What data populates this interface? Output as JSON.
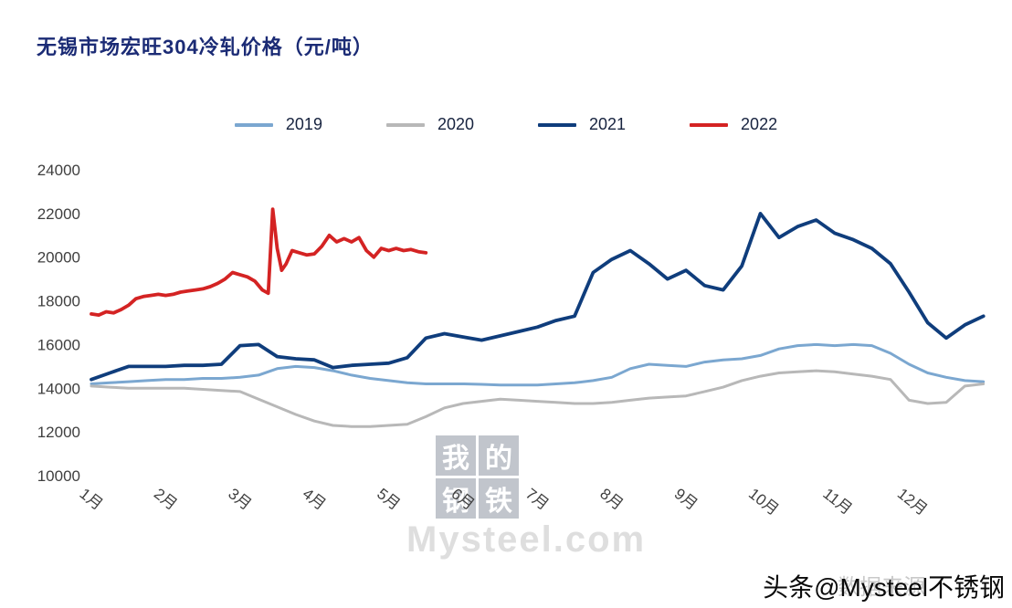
{
  "title": "无锡市场宏旺304冷轧价格（元/吨）",
  "watermark": {
    "chars": [
      "我",
      "的",
      "钢",
      "铁"
    ],
    "site": "Mysteel.com"
  },
  "footer": {
    "credit": "头条@Mysteel不锈钢",
    "faint": "数据来源"
  },
  "chart_data": {
    "type": "line",
    "title": "无锡市场宏旺304冷轧价格（元/吨）",
    "xlabel": "",
    "ylabel": "",
    "legend_position": "top-center",
    "grid": false,
    "x_axis": {
      "range": [
        1,
        13.2
      ],
      "tick_values": [
        1,
        2,
        3,
        4,
        5,
        6,
        7,
        8,
        9,
        10,
        11,
        12
      ],
      "tick_labels": [
        "1月",
        "2月",
        "3月",
        "4月",
        "5月",
        "6月",
        "7月",
        "8月",
        "9月",
        "10月",
        "11月",
        "12月"
      ]
    },
    "y_axis": {
      "range": [
        10000,
        24000
      ],
      "tick_values": [
        10000,
        12000,
        14000,
        16000,
        18000,
        20000,
        22000,
        24000
      ]
    },
    "series": [
      {
        "name": "2019",
        "color": "#7ba7d0",
        "stroke_width": 3,
        "x": [
          1,
          1.25,
          1.5,
          1.75,
          2,
          2.25,
          2.5,
          2.75,
          3,
          3.25,
          3.5,
          3.75,
          4,
          4.25,
          4.5,
          4.75,
          5,
          5.25,
          5.5,
          5.75,
          6,
          6.25,
          6.5,
          6.75,
          7,
          7.25,
          7.5,
          7.75,
          8,
          8.25,
          8.5,
          8.75,
          9,
          9.25,
          9.5,
          9.75,
          10,
          10.25,
          10.5,
          10.75,
          11,
          11.25,
          11.5,
          11.75,
          12,
          12.25,
          12.5,
          12.75,
          13
        ],
        "y": [
          14200,
          14250,
          14300,
          14350,
          14400,
          14400,
          14450,
          14450,
          14500,
          14600,
          14900,
          15000,
          14950,
          14800,
          14600,
          14450,
          14350,
          14250,
          14200,
          14200,
          14200,
          14180,
          14150,
          14150,
          14150,
          14200,
          14250,
          14350,
          14500,
          14900,
          15100,
          15050,
          15000,
          15200,
          15300,
          15350,
          15500,
          15800,
          15950,
          16000,
          15950,
          16000,
          15950,
          15600,
          15100,
          14700,
          14500,
          14350,
          14300
        ]
      },
      {
        "name": "2020",
        "color": "#b8b8b8",
        "stroke_width": 3,
        "x": [
          1,
          1.25,
          1.5,
          1.75,
          2,
          2.25,
          2.5,
          2.75,
          3,
          3.25,
          3.5,
          3.75,
          4,
          4.25,
          4.5,
          4.75,
          5,
          5.25,
          5.5,
          5.75,
          6,
          6.25,
          6.5,
          6.75,
          7,
          7.25,
          7.5,
          7.75,
          8,
          8.25,
          8.5,
          8.75,
          9,
          9.25,
          9.5,
          9.75,
          10,
          10.25,
          10.5,
          10.75,
          11,
          11.25,
          11.5,
          11.75,
          12,
          12.25,
          12.5,
          12.75,
          13
        ],
        "y": [
          14100,
          14050,
          14000,
          14000,
          14000,
          14000,
          13950,
          13900,
          13850,
          13500,
          13150,
          12800,
          12500,
          12300,
          12250,
          12250,
          12300,
          12350,
          12700,
          13100,
          13300,
          13400,
          13500,
          13450,
          13400,
          13350,
          13300,
          13300,
          13350,
          13450,
          13550,
          13600,
          13650,
          13850,
          14050,
          14350,
          14550,
          14700,
          14750,
          14800,
          14750,
          14650,
          14550,
          14400,
          13450,
          13300,
          13350,
          14100,
          14200
        ]
      },
      {
        "name": "2021",
        "color": "#0f3d7c",
        "stroke_width": 3.8,
        "x": [
          1,
          1.25,
          1.5,
          1.75,
          2,
          2.25,
          2.5,
          2.75,
          3,
          3.25,
          3.5,
          3.75,
          4,
          4.25,
          4.5,
          4.75,
          5,
          5.25,
          5.5,
          5.75,
          6,
          6.25,
          6.5,
          6.75,
          7,
          7.25,
          7.5,
          7.75,
          8,
          8.25,
          8.5,
          8.75,
          9,
          9.25,
          9.5,
          9.75,
          10,
          10.25,
          10.5,
          10.75,
          11,
          11.25,
          11.5,
          11.75,
          12,
          12.25,
          12.5,
          12.75,
          13
        ],
        "y": [
          14400,
          14700,
          15000,
          15000,
          15000,
          15050,
          15050,
          15100,
          15950,
          16000,
          15450,
          15350,
          15300,
          14950,
          15050,
          15100,
          15150,
          15400,
          16300,
          16500,
          16350,
          16200,
          16400,
          16600,
          16800,
          17100,
          17300,
          19300,
          19900,
          20300,
          19700,
          19000,
          19400,
          18700,
          18500,
          19600,
          22000,
          20900,
          21400,
          21700,
          21100,
          20800,
          20400,
          19700,
          18400,
          17000,
          16300,
          16900,
          17300
        ]
      },
      {
        "name": "2022",
        "color": "#d42323",
        "stroke_width": 3.8,
        "x": [
          1,
          1.1,
          1.2,
          1.3,
          1.4,
          1.5,
          1.6,
          1.7,
          1.8,
          1.9,
          2,
          2.1,
          2.2,
          2.3,
          2.4,
          2.5,
          2.6,
          2.7,
          2.8,
          2.9,
          3,
          3.1,
          3.2,
          3.3,
          3.38,
          3.44,
          3.5,
          3.56,
          3.62,
          3.7,
          3.8,
          3.9,
          4,
          4.1,
          4.2,
          4.3,
          4.4,
          4.5,
          4.6,
          4.7,
          4.8,
          4.9,
          5,
          5.1,
          5.2,
          5.3,
          5.4,
          5.5
        ],
        "y": [
          17400,
          17350,
          17500,
          17450,
          17600,
          17800,
          18100,
          18200,
          18250,
          18300,
          18250,
          18300,
          18400,
          18450,
          18500,
          18550,
          18650,
          18800,
          19000,
          19300,
          19200,
          19100,
          18900,
          18500,
          18350,
          22200,
          20400,
          19400,
          19700,
          20300,
          20200,
          20100,
          20150,
          20500,
          21000,
          20700,
          20850,
          20700,
          20900,
          20300,
          20000,
          20400,
          20300,
          20400,
          20300,
          20350,
          20250,
          20200
        ]
      }
    ]
  }
}
